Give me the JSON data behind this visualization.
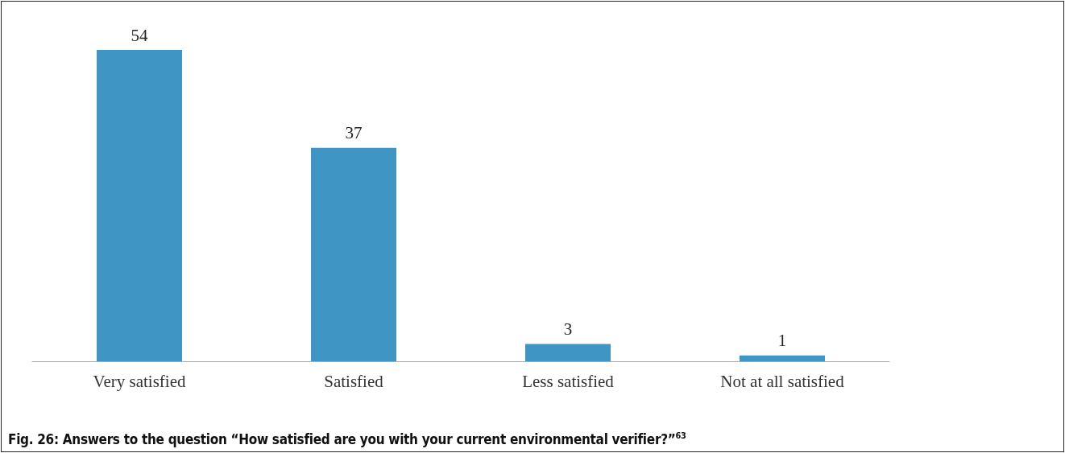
{
  "chart_data": {
    "type": "bar",
    "categories": [
      "Very satisfied",
      "Satisfied",
      "Less satisfied",
      "Not at all satisfied"
    ],
    "values": [
      54,
      37,
      3,
      1
    ],
    "color": "#3f96c5",
    "data_labels": true,
    "tick_labels": "x",
    "annotations": [
      "Fig. 26: Answers to the question “How satisfied are you with your current environmental verifier?”$^{63}$"
    ]
  }
}
